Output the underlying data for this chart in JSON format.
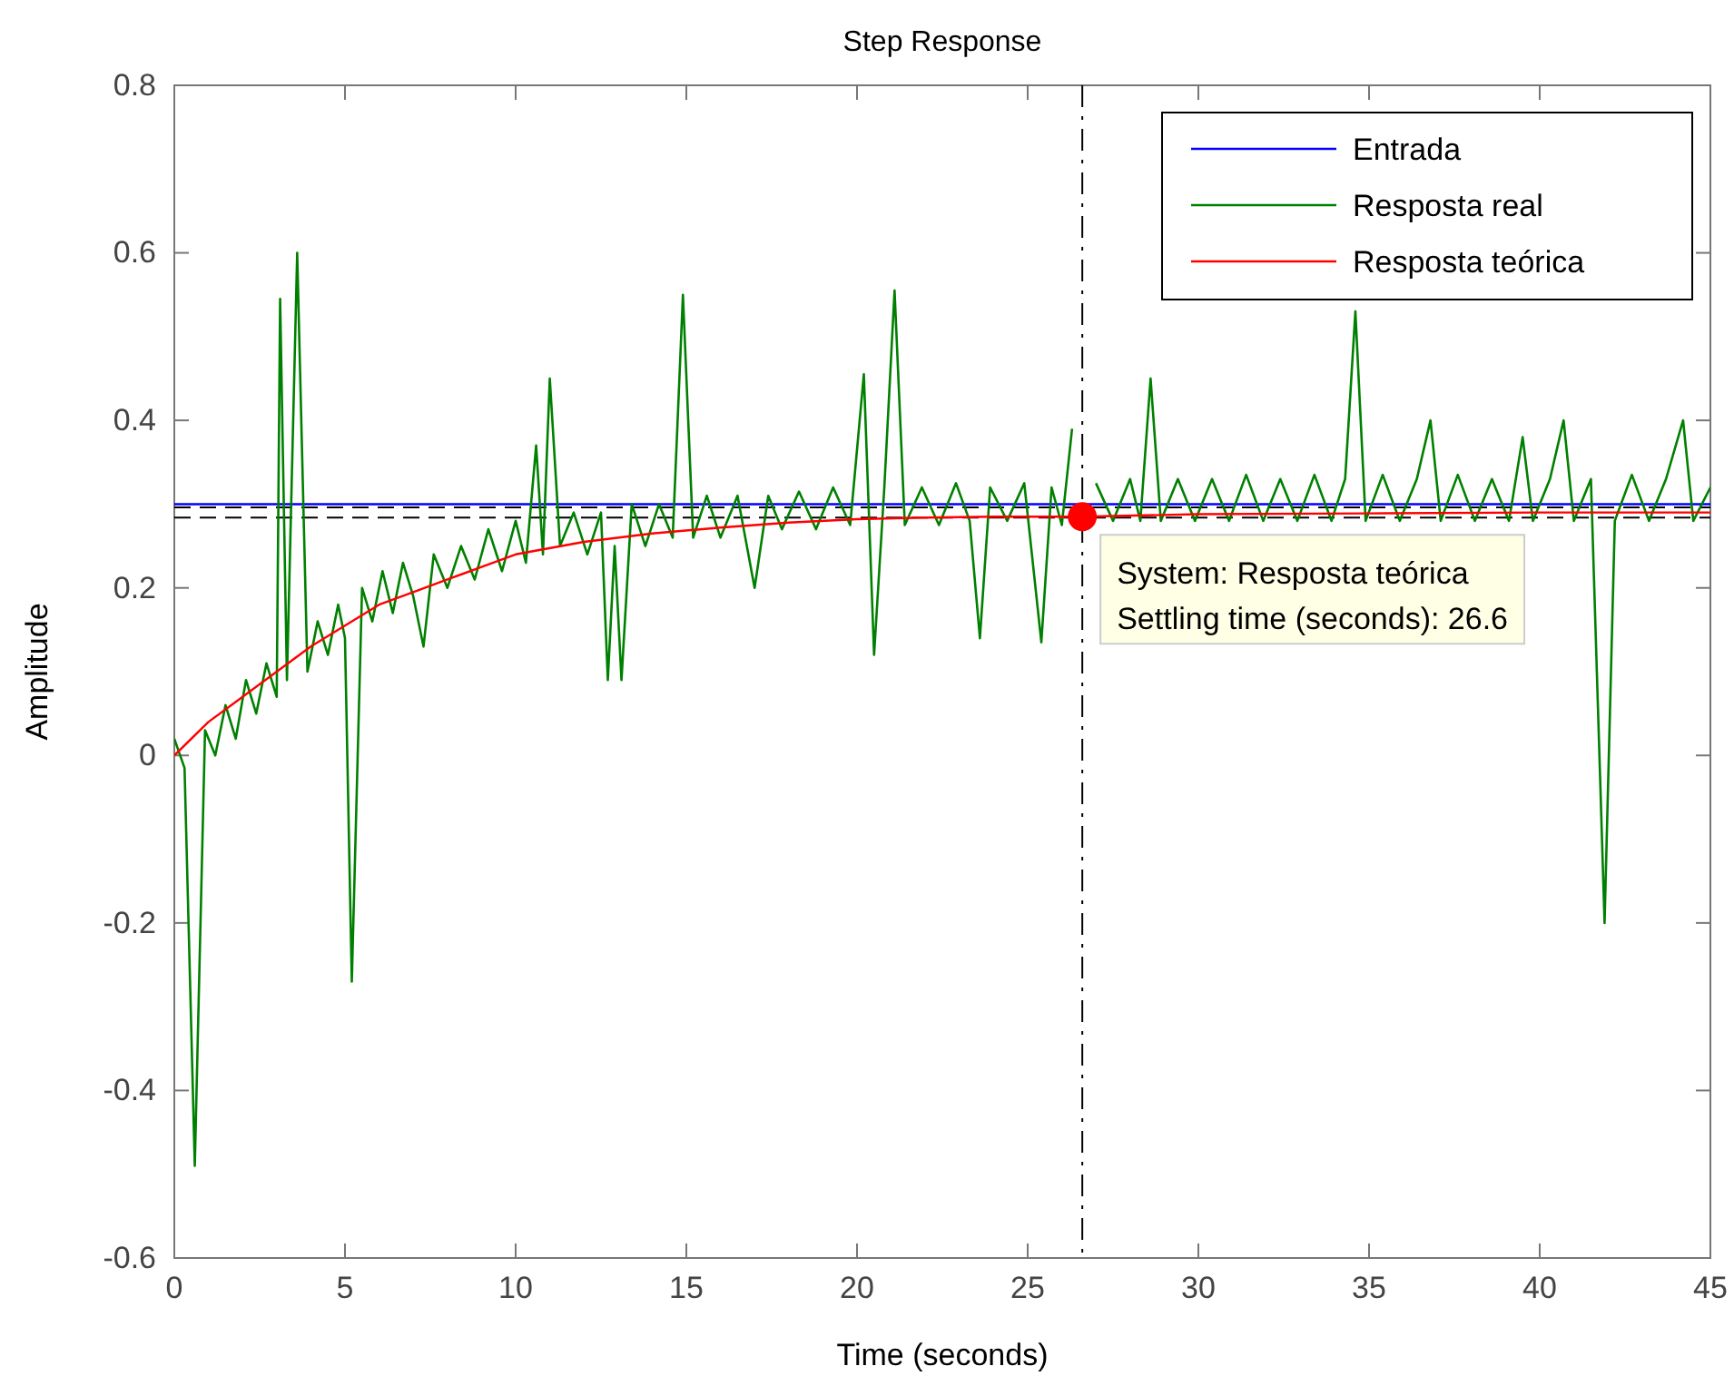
{
  "chart_data": {
    "type": "line",
    "title": "Step Response",
    "xlabel": "Time (seconds)",
    "ylabel": "Amplitude",
    "xlim": [
      0,
      45
    ],
    "xticks": [
      0,
      5,
      10,
      15,
      20,
      25,
      30,
      35,
      40,
      45
    ],
    "ylim": [
      -0.6,
      0.8
    ],
    "yticks": [
      -0.6,
      -0.4,
      -0.2,
      0,
      0.2,
      0.4,
      0.6,
      0.8
    ],
    "grid": false,
    "legend": "top right",
    "marker": "none",
    "ref_lines": [
      {
        "axis": "y",
        "value": 0.296,
        "color": "#000000",
        "line_style": "dashed"
      },
      {
        "axis": "y",
        "value": 0.284,
        "color": "#000000",
        "line_style": "dashed"
      },
      {
        "axis": "x",
        "value": 26.6,
        "color": "#000000",
        "line_style": "dashed"
      }
    ],
    "annotations": [
      {
        "text": "System: Resposta teórica\nSettling time (seconds): 26.6",
        "x": 26.6,
        "y": 0.285
      }
    ],
    "series": [
      {
        "name": "Entrada",
        "color": "#0000ff",
        "x": [
          0,
          45
        ],
        "values": [
          0.3,
          0.3
        ]
      },
      {
        "name": "Resposta real",
        "color": "#008000",
        "x": [
          0,
          0.3,
          0.6,
          0.9,
          1.2,
          1.5,
          1.8,
          2.1,
          2.4,
          2.7,
          3.0,
          3.1,
          3.3,
          3.6,
          3.9,
          4.2,
          4.5,
          4.8,
          5.0,
          5.2,
          5.5,
          5.8,
          6.1,
          6.4,
          6.7,
          7.0,
          7.3,
          7.6,
          8.0,
          8.4,
          8.8,
          9.2,
          9.6,
          10.0,
          10.3,
          10.6,
          10.8,
          11.0,
          11.3,
          11.7,
          12.1,
          12.5,
          12.7,
          12.9,
          13.1,
          13.4,
          13.8,
          14.2,
          14.6,
          14.9,
          15.2,
          15.6,
          16.0,
          16.5,
          17.0,
          17.4,
          17.8,
          18.3,
          18.8,
          19.3,
          19.8,
          20.2,
          20.5,
          20.8,
          21.1,
          21.4,
          21.9,
          22.4,
          22.9,
          23.3,
          23.6,
          23.9,
          24.4,
          24.9,
          25.4,
          25.7,
          26.0,
          26.3,
          26.6,
          27.0,
          27.5,
          28.0,
          28.3,
          28.6,
          28.9,
          29.4,
          29.9,
          30.4,
          30.9,
          31.4,
          31.9,
          32.4,
          32.9,
          33.4,
          33.9,
          34.3,
          34.6,
          34.9,
          35.4,
          35.9,
          36.4,
          36.8,
          37.1,
          37.6,
          38.1,
          38.6,
          39.1,
          39.5,
          39.8,
          40.3,
          40.7,
          41.0,
          41.5,
          41.9,
          42.2,
          42.7,
          43.2,
          43.7,
          44.2,
          44.5,
          45
        ],
        "values": [
          0.02,
          -0.015,
          -0.49,
          0.03,
          0.0,
          0.06,
          0.02,
          0.09,
          0.05,
          0.11,
          0.07,
          0.545,
          0.09,
          0.6,
          0.1,
          0.16,
          0.12,
          0.18,
          0.14,
          -0.27,
          0.2,
          0.16,
          0.22,
          0.17,
          0.23,
          0.19,
          0.13,
          0.24,
          0.2,
          0.25,
          0.21,
          0.27,
          0.22,
          0.28,
          0.23,
          0.37,
          0.24,
          0.45,
          0.25,
          0.29,
          0.24,
          0.29,
          0.09,
          0.25,
          0.09,
          0.3,
          0.25,
          0.3,
          0.26,
          0.55,
          0.26,
          0.31,
          0.26,
          0.31,
          0.2,
          0.31,
          0.27,
          0.315,
          0.27,
          0.32,
          0.275,
          0.455,
          0.12,
          0.32,
          0.555,
          0.275,
          0.32,
          0.275,
          0.325,
          0.28,
          0.14,
          0.32,
          0.28,
          0.325,
          0.135,
          0.32,
          0.275,
          0.39,
          null,
          0.325,
          0.28,
          0.33,
          0.28,
          0.45,
          0.28,
          0.33,
          0.28,
          0.33,
          0.28,
          0.335,
          0.28,
          0.33,
          0.28,
          0.335,
          0.28,
          0.33,
          0.53,
          0.28,
          0.335,
          0.28,
          0.33,
          0.4,
          0.28,
          0.335,
          0.28,
          0.33,
          0.28,
          0.38,
          0.28,
          0.33,
          0.4,
          0.28,
          0.33,
          -0.2,
          0.28,
          0.335,
          0.28,
          0.33,
          0.4,
          0.28,
          0.32
        ]
      },
      {
        "name": "Resposta teórica",
        "color": "#ff0000",
        "x": [
          0,
          1,
          2,
          3,
          4,
          5,
          6,
          7,
          8,
          9,
          10,
          12,
          14,
          16,
          18,
          20,
          22,
          24,
          26.6,
          30,
          35,
          40,
          45
        ],
        "values": [
          0,
          0.04,
          0.07,
          0.1,
          0.13,
          0.155,
          0.18,
          0.195,
          0.21,
          0.225,
          0.24,
          0.255,
          0.265,
          0.272,
          0.278,
          0.282,
          0.284,
          0.285,
          0.285,
          0.288,
          0.289,
          0.29,
          0.29
        ]
      }
    ]
  }
}
